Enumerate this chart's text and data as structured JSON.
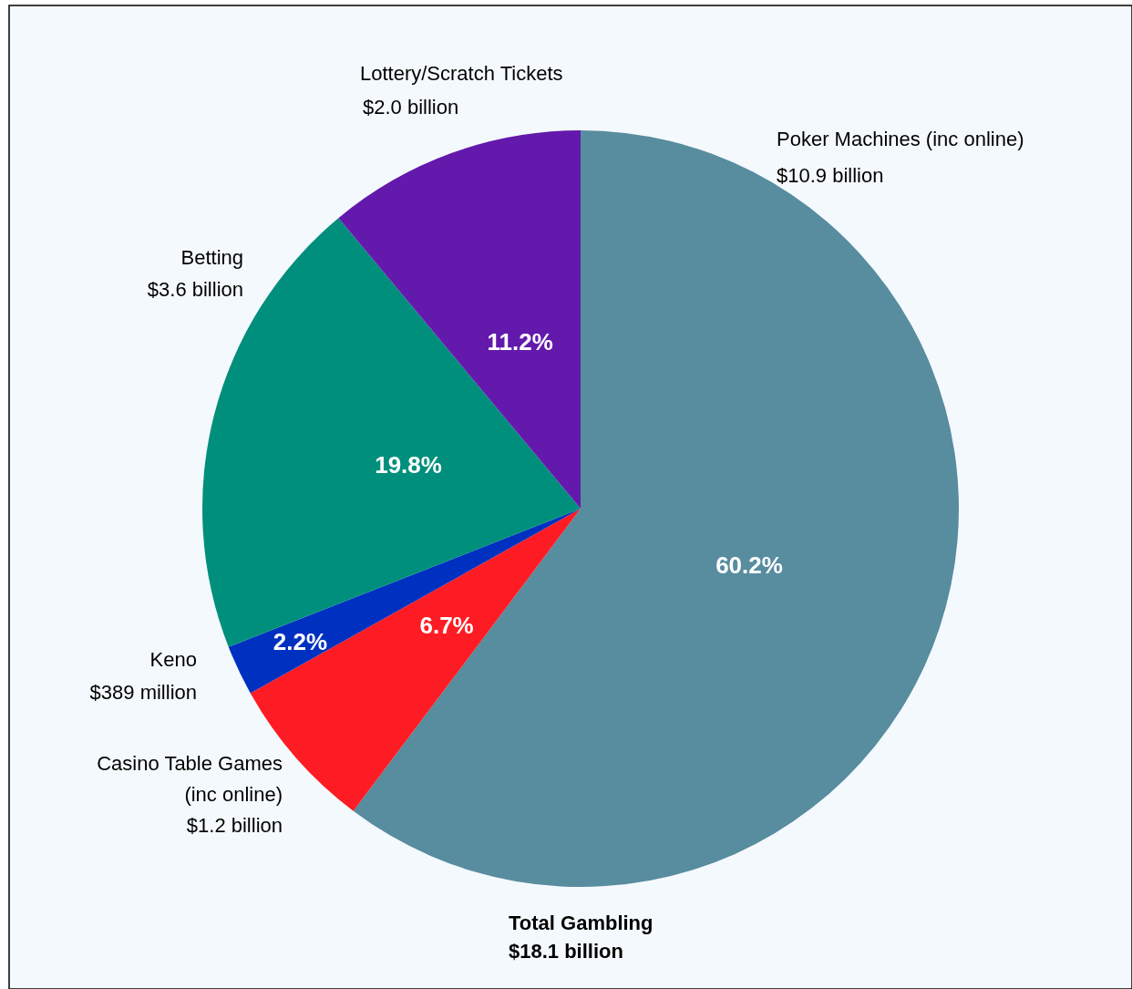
{
  "chart_data": {
    "type": "pie",
    "categories": [
      "Poker Machines (inc online)\n$10.9 billion",
      "Casino Table Games\n(inc online)\n$1.2 billion",
      "Keno\n$389 million",
      "Betting\n$3.6 billion",
      "Lottery/Scratch Tickets\n$2.0 billion"
    ],
    "values": [
      10.9,
      1.2,
      0.389,
      3.6,
      2.0
    ],
    "colors": [
      "#588c9f",
      "#fe1c24",
      "#0030c0",
      "#008f7c",
      "#6319ac"
    ],
    "annotations": [
      "Total Gambling\n$18.1 billion",
      "60.2%",
      "6.7%",
      "2.2%",
      "19.8%",
      "11.2%"
    ]
  }
}
